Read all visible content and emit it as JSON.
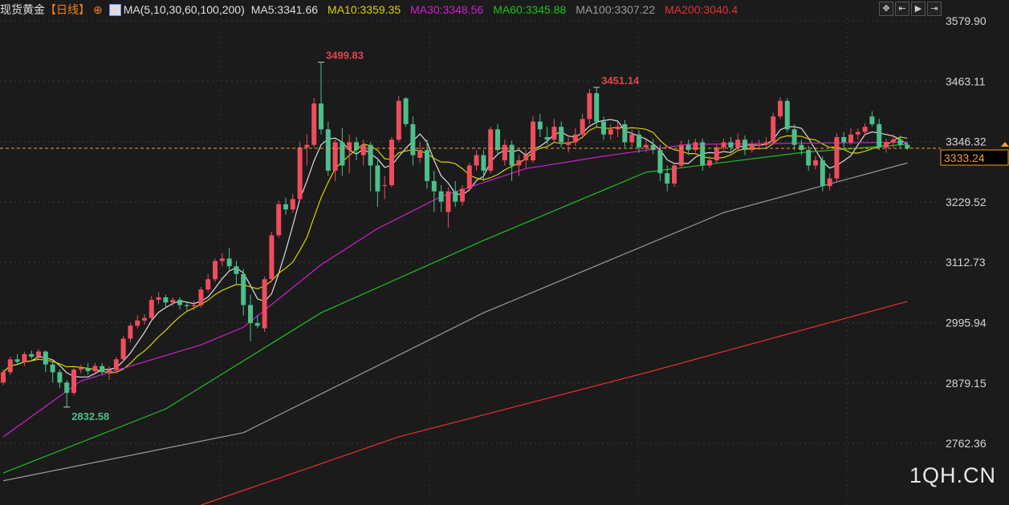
{
  "header": {
    "instrument": "现货黄金",
    "period": "【日线】",
    "ma_label": "MA(5,10,30,60,100,200)",
    "ma_values": [
      {
        "label": "MA5:3341.66",
        "color": "#dddddd"
      },
      {
        "label": "MA10:3359.35",
        "color": "#d4d400"
      },
      {
        "label": "MA30:3348.56",
        "color": "#d020d0"
      },
      {
        "label": "MA60:3345.88",
        "color": "#20c020"
      },
      {
        "label": "MA100:3307.22",
        "color": "#9a9a9a"
      },
      {
        "label": "MA200:3040.4",
        "color": "#e83030"
      }
    ]
  },
  "toolbar": [
    "crosshair-icon",
    "zoom-in-icon",
    "zoom-out-icon",
    "move-right-icon"
  ],
  "watermark": "1QH.CN",
  "chart_data": {
    "type": "candlestick",
    "ylim": [
      2700,
      3600
    ],
    "y_ticks": [
      "3579.90",
      "3463.11",
      "3346.32",
      "3229.52",
      "3112.73",
      "2995.94",
      "2879.15",
      "2762.36"
    ],
    "last_price": "3333.24",
    "annotations": [
      {
        "text": "3499.83",
        "type": "high"
      },
      {
        "text": "2832.58",
        "type": "low"
      },
      {
        "text": "3451.14",
        "type": "high"
      }
    ],
    "colors": {
      "up": "#ef4d5e",
      "down": "#4cbf8c",
      "last": "#f0a030"
    },
    "ohlc": [
      [
        2880,
        2905,
        2875,
        2900
      ],
      [
        2900,
        2930,
        2895,
        2925
      ],
      [
        2925,
        2935,
        2915,
        2920
      ],
      [
        2920,
        2940,
        2912,
        2935
      ],
      [
        2935,
        2942,
        2925,
        2930
      ],
      [
        2930,
        2945,
        2925,
        2940
      ],
      [
        2940,
        2942,
        2900,
        2915
      ],
      [
        2915,
        2920,
        2880,
        2900
      ],
      [
        2900,
        2905,
        2870,
        2880
      ],
      [
        2880,
        2885,
        2832.58,
        2860
      ],
      [
        2860,
        2910,
        2855,
        2905
      ],
      [
        2905,
        2915,
        2898,
        2908
      ],
      [
        2908,
        2918,
        2895,
        2902
      ],
      [
        2902,
        2918,
        2898,
        2912
      ],
      [
        2912,
        2918,
        2895,
        2900
      ],
      [
        2900,
        2912,
        2885,
        2905
      ],
      [
        2905,
        2930,
        2900,
        2925
      ],
      [
        2925,
        2970,
        2920,
        2965
      ],
      [
        2965,
        2995,
        2958,
        2990
      ],
      [
        2990,
        3010,
        2985,
        3000
      ],
      [
        3000,
        3012,
        2992,
        3005
      ],
      [
        3005,
        3048,
        3000,
        3040
      ],
      [
        3040,
        3055,
        3032,
        3045
      ],
      [
        3045,
        3050,
        3025,
        3035
      ],
      [
        3035,
        3045,
        3028,
        3040
      ],
      [
        3040,
        3045,
        3022,
        3030
      ],
      [
        3030,
        3035,
        3020,
        3028
      ],
      [
        3028,
        3038,
        3020,
        3030
      ],
      [
        3030,
        3065,
        3025,
        3060
      ],
      [
        3060,
        3090,
        3055,
        3080
      ],
      [
        3080,
        3120,
        3075,
        3115
      ],
      [
        3115,
        3130,
        3105,
        3120
      ],
      [
        3120,
        3140,
        3098,
        3105
      ],
      [
        3105,
        3115,
        3070,
        3090
      ],
      [
        3090,
        3100,
        3010,
        3030
      ],
      [
        3030,
        3050,
        2960,
        2995
      ],
      [
        2995,
        3010,
        2985,
        2990
      ],
      [
        2985,
        3085,
        2978,
        3080
      ],
      [
        3080,
        3172,
        3075,
        3165
      ],
      [
        3165,
        3232,
        3160,
        3225
      ],
      [
        3225,
        3238,
        3205,
        3215
      ],
      [
        3215,
        3245,
        3208,
        3235
      ],
      [
        3235,
        3345,
        3230,
        3335
      ],
      [
        3335,
        3360,
        3300,
        3340
      ],
      [
        3340,
        3430,
        3335,
        3420
      ],
      [
        3420,
        3499.83,
        3360,
        3370
      ],
      [
        3370,
        3385,
        3280,
        3290
      ],
      [
        3290,
        3350,
        3270,
        3345
      ],
      [
        3345,
        3372,
        3280,
        3300
      ],
      [
        3330,
        3360,
        3285,
        3345
      ],
      [
        3345,
        3355,
        3310,
        3330
      ],
      [
        3320,
        3350,
        3300,
        3340
      ],
      [
        3340,
        3345,
        3250,
        3300
      ],
      [
        3300,
        3310,
        3220,
        3250
      ],
      [
        3262,
        3280,
        3235,
        3262
      ],
      [
        3262,
        3355,
        3258,
        3350
      ],
      [
        3350,
        3435,
        3345,
        3425
      ],
      [
        3430,
        3432,
        3375,
        3380
      ],
      [
        3380,
        3395,
        3300,
        3320
      ],
      [
        3315,
        3345,
        3305,
        3330
      ],
      [
        3330,
        3350,
        3255,
        3270
      ],
      [
        3270,
        3290,
        3210,
        3250
      ],
      [
        3250,
        3262,
        3210,
        3230
      ],
      [
        3210,
        3258,
        3180,
        3250
      ],
      [
        3250,
        3270,
        3220,
        3230
      ],
      [
        3230,
        3262,
        3222,
        3255
      ],
      [
        3255,
        3305,
        3250,
        3300
      ],
      [
        3300,
        3330,
        3290,
        3320
      ],
      [
        3320,
        3330,
        3270,
        3290
      ],
      [
        3290,
        3375,
        3285,
        3370
      ],
      [
        3370,
        3380,
        3320,
        3330
      ],
      [
        3310,
        3350,
        3300,
        3340
      ],
      [
        3340,
        3348,
        3270,
        3300
      ],
      [
        3300,
        3320,
        3280,
        3310
      ],
      [
        3310,
        3330,
        3295,
        3320
      ],
      [
        3310,
        3395,
        3305,
        3385
      ],
      [
        3385,
        3400,
        3355,
        3370
      ],
      [
        3355,
        3375,
        3340,
        3350
      ],
      [
        3350,
        3390,
        3345,
        3375
      ],
      [
        3375,
        3385,
        3335,
        3345
      ],
      [
        3340,
        3355,
        3325,
        3345
      ],
      [
        3345,
        3372,
        3338,
        3360
      ],
      [
        3360,
        3400,
        3352,
        3390
      ],
      [
        3390,
        3448,
        3380,
        3440
      ],
      [
        3440,
        3451.14,
        3375,
        3385
      ],
      [
        3385,
        3395,
        3350,
        3360
      ],
      [
        3360,
        3380,
        3350,
        3370
      ],
      [
        3370,
        3385,
        3355,
        3375
      ],
      [
        3380,
        3388,
        3335,
        3345
      ],
      [
        3345,
        3370,
        3335,
        3360
      ],
      [
        3360,
        3368,
        3325,
        3335
      ],
      [
        3335,
        3350,
        3325,
        3340
      ],
      [
        3340,
        3352,
        3322,
        3330
      ],
      [
        3330,
        3340,
        3270,
        3285
      ],
      [
        3285,
        3300,
        3250,
        3265
      ],
      [
        3265,
        3305,
        3258,
        3300
      ],
      [
        3300,
        3348,
        3295,
        3340
      ],
      [
        3340,
        3350,
        3320,
        3330
      ],
      [
        3330,
        3352,
        3325,
        3345
      ],
      [
        3345,
        3352,
        3290,
        3300
      ],
      [
        3300,
        3318,
        3295,
        3310
      ],
      [
        3310,
        3340,
        3305,
        3335
      ],
      [
        3335,
        3352,
        3330,
        3345
      ],
      [
        3345,
        3355,
        3325,
        3335
      ],
      [
        3335,
        3362,
        3330,
        3350
      ],
      [
        3350,
        3358,
        3320,
        3330
      ],
      [
        3330,
        3348,
        3325,
        3340
      ],
      [
        3340,
        3350,
        3330,
        3340
      ],
      [
        3340,
        3355,
        3332,
        3345
      ],
      [
        3345,
        3402,
        3340,
        3395
      ],
      [
        3395,
        3432,
        3390,
        3425
      ],
      [
        3425,
        3430,
        3365,
        3370
      ],
      [
        3370,
        3380,
        3330,
        3340
      ],
      [
        3340,
        3350,
        3320,
        3330
      ],
      [
        3330,
        3338,
        3290,
        3300
      ],
      [
        3300,
        3318,
        3292,
        3310
      ],
      [
        3310,
        3318,
        3250,
        3260
      ],
      [
        3260,
        3285,
        3252,
        3275
      ],
      [
        3275,
        3362,
        3268,
        3355
      ],
      [
        3355,
        3365,
        3335,
        3345
      ],
      [
        3345,
        3372,
        3340,
        3360
      ],
      [
        3360,
        3372,
        3350,
        3365
      ],
      [
        3365,
        3382,
        3358,
        3375
      ],
      [
        3395,
        3405,
        3375,
        3380
      ],
      [
        3380,
        3390,
        3330,
        3335
      ],
      [
        3335,
        3352,
        3325,
        3345
      ],
      [
        3345,
        3360,
        3335,
        3350
      ],
      [
        3350,
        3358,
        3335,
        3340
      ],
      [
        3340,
        3345,
        3330,
        3333.24
      ]
    ],
    "ma_series": [
      {
        "name": "MA5",
        "period": 5,
        "color": "#dddddd"
      },
      {
        "name": "MA10",
        "period": 10,
        "color": "#d4d400"
      },
      {
        "name": "MA30",
        "color": "#d020d0",
        "points": [
          [
            0,
            2775
          ],
          [
            11,
            2883
          ],
          [
            28,
            2953
          ],
          [
            34,
            2987
          ],
          [
            45,
            3108
          ],
          [
            53,
            3178
          ],
          [
            62,
            3240
          ],
          [
            74,
            3294
          ],
          [
            85,
            3318
          ],
          [
            97,
            3341
          ],
          [
            128,
            3345
          ]
        ]
      },
      {
        "name": "MA60",
        "color": "#20c020",
        "points": [
          [
            0,
            2705
          ],
          [
            23,
            2829
          ],
          [
            45,
            3015
          ],
          [
            68,
            3155
          ],
          [
            91,
            3287
          ],
          [
            113,
            3325
          ],
          [
            128,
            3341
          ]
        ]
      },
      {
        "name": "MA100",
        "color": "#9a9a9a",
        "points": [
          [
            0,
            2690
          ],
          [
            34,
            2783
          ],
          [
            68,
            3015
          ],
          [
            102,
            3209
          ],
          [
            128,
            3305
          ]
        ]
      },
      {
        "name": "MA200",
        "color": "#e83030",
        "points": [
          [
            28,
            2643
          ],
          [
            56,
            2775
          ],
          [
            91,
            2899
          ],
          [
            128,
            3037
          ]
        ]
      }
    ]
  }
}
